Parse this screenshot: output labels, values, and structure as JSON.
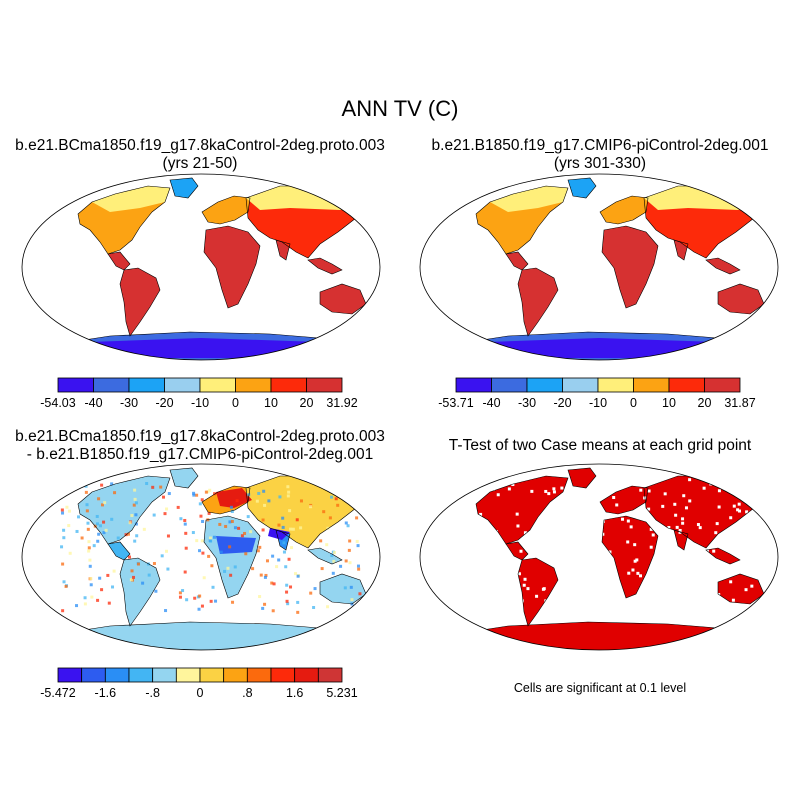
{
  "title": "ANN TV (C)",
  "panels": [
    {
      "id": "p1",
      "title_line1": "b.e21.BCma1850.f19_g17.8kaControl-2deg.proto.003",
      "title_line2": "(yrs 21-50)"
    },
    {
      "id": "p2",
      "title_line1": "b.e21.B1850.f19_g17.CMIP6-piControl-2deg.001",
      "title_line2": "(yrs 301-330)"
    },
    {
      "id": "p3",
      "title_line1": "b.e21.BCma1850.f19_g17.8kaControl-2deg.proto.003",
      "title_line2": "- b.e21.B1850.f19_g17.CMIP6-piControl-2deg.001"
    },
    {
      "id": "p4",
      "title_line1": "T-Test of two Case means at each grid point",
      "title_line2": ""
    }
  ],
  "colorbars": [
    {
      "id": "cb1",
      "colors": [
        "#3a12f0",
        "#3c6be0",
        "#1ca3f5",
        "#99cfef",
        "#ffef7a",
        "#fca313",
        "#fd2a0a",
        "#d63131"
      ],
      "labels": [
        "-54.03",
        "-40",
        "-30",
        "-20",
        "-10",
        "0",
        "10",
        "20",
        "31.92"
      ]
    },
    {
      "id": "cb2",
      "colors": [
        "#3a12f0",
        "#3c6be0",
        "#1ca3f5",
        "#99cfef",
        "#ffef7a",
        "#fca313",
        "#fd2a0a",
        "#d63131"
      ],
      "labels": [
        "-53.71",
        "-40",
        "-30",
        "-20",
        "-10",
        "0",
        "10",
        "20",
        "31.87"
      ]
    },
    {
      "id": "cb3",
      "colors": [
        "#3a12f0",
        "#2d5cf0",
        "#2a8ef5",
        "#43b5f3",
        "#94d5f0",
        "#fff59c",
        "#fbd244",
        "#fca313",
        "#fb6a0d",
        "#fd2a0a",
        "#e51b10",
        "#cf3535"
      ],
      "labels": [
        "-5.472",
        "-1.6",
        "-.8",
        "0",
        ".8",
        "1.6",
        "5.231"
      ],
      "label_at_boundary": [
        0,
        2,
        4,
        6,
        8,
        10,
        12
      ]
    }
  ],
  "significance_note": "Cells are significant at 0.1 level"
}
